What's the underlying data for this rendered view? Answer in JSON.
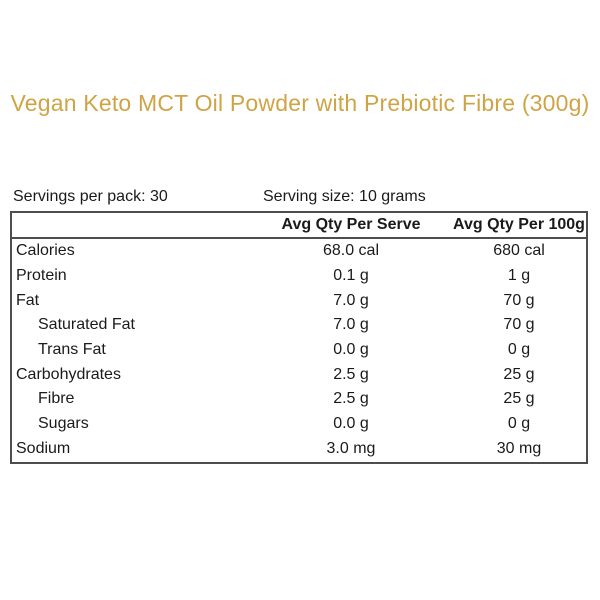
{
  "title": "Vegan Keto MCT Oil Powder with Prebiotic Fibre (300g)",
  "colors": {
    "title_accent": "#d0a445",
    "text": "#1a1a1a",
    "table_border": "#4d4d4d",
    "background": "#ffffff"
  },
  "serving_info": {
    "servings_per_pack": "Servings per pack: 30",
    "serving_size": "Serving size: 10 grams"
  },
  "nutrition_table": {
    "columns": [
      "",
      "Avg Qty Per Serve",
      "Avg Qty Per 100g"
    ],
    "rows": [
      {
        "label": "Calories",
        "indent": false,
        "per_serve": "68.0 cal",
        "per_100g": "680 cal"
      },
      {
        "label": "Protein",
        "indent": false,
        "per_serve": "0.1 g",
        "per_100g": "1 g"
      },
      {
        "label": "Fat",
        "indent": false,
        "per_serve": "7.0 g",
        "per_100g": "70 g"
      },
      {
        "label": "Saturated Fat",
        "indent": true,
        "per_serve": "7.0 g",
        "per_100g": "70 g"
      },
      {
        "label": "Trans Fat",
        "indent": true,
        "per_serve": "0.0 g",
        "per_100g": "0 g"
      },
      {
        "label": "Carbohydrates",
        "indent": false,
        "per_serve": "2.5 g",
        "per_100g": "25 g"
      },
      {
        "label": "Fibre",
        "indent": true,
        "per_serve": "2.5 g",
        "per_100g": "25 g"
      },
      {
        "label": "Sugars",
        "indent": true,
        "per_serve": "0.0 g",
        "per_100g": "0 g"
      },
      {
        "label": "Sodium",
        "indent": false,
        "per_serve": "3.0 mg",
        "per_100g": "30 mg"
      }
    ]
  }
}
